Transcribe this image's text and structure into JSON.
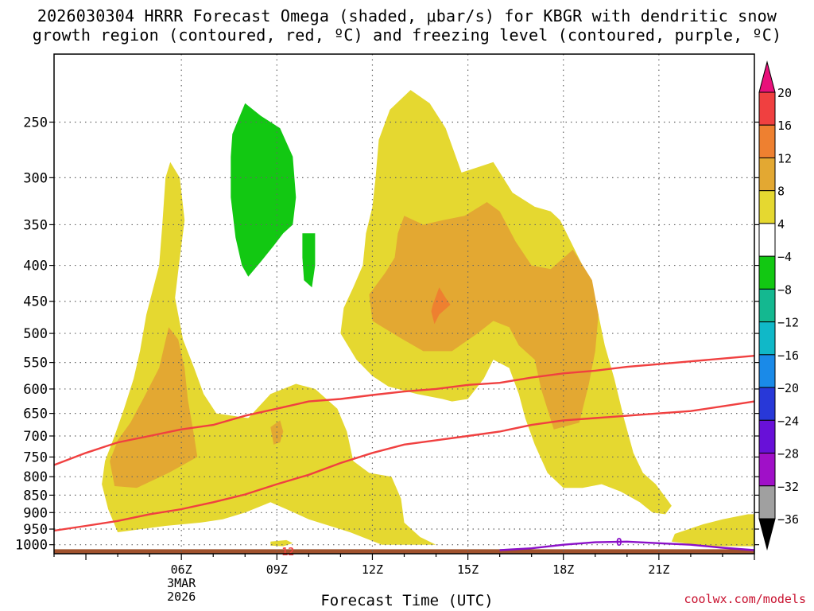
{
  "title_line1": "2026030304 HRRR Forecast Omega (shaded, μbar/s) for KBGR with dendritic snow",
  "title_line2": "growth region (contoured, red, ºC) and freezing level (contoured, purple, ºC)",
  "xlabel": "Forecast Time (UTC)",
  "credit": "coolwx.com/models",
  "chart_data": {
    "type": "heatmap",
    "title": "2026030304 HRRR Forecast Omega (shaded, μbar/s) for KBGR with dendritic snow growth region (contoured, red, ºC) and freezing level (contoured, purple, ºC)",
    "xlabel": "Forecast Time (UTC)",
    "ylabel": "",
    "x_range_hours_utc": [
      2.0,
      24.0
    ],
    "y_range_hpa": [
      1030,
      200
    ],
    "y_scale": "log",
    "grid": true,
    "x_ticks": [
      {
        "hour": 6,
        "label": "06Z",
        "sub1": "3MAR",
        "sub2": "2026"
      },
      {
        "hour": 9,
        "label": "09Z"
      },
      {
        "hour": 12,
        "label": "12Z"
      },
      {
        "hour": 15,
        "label": "15Z"
      },
      {
        "hour": 18,
        "label": "18Z"
      },
      {
        "hour": 21,
        "label": "21Z"
      }
    ],
    "y_ticks": [
      250,
      300,
      350,
      400,
      450,
      500,
      550,
      600,
      650,
      700,
      750,
      800,
      850,
      900,
      950,
      1000
    ],
    "colorbar": {
      "labels": [
        "20",
        "16",
        "12",
        "8",
        "4",
        "−4",
        "−8",
        "−12",
        "−16",
        "−20",
        "−24",
        "−28",
        "−32",
        "−36"
      ],
      "colors": [
        "#e8107a",
        "#f04040",
        "#ee8030",
        "#e3a832",
        "#e5d830",
        "#ffffff",
        "#12c812",
        "#14b890",
        "#10b8c8",
        "#1a8ae8",
        "#2838d8",
        "#6810d8",
        "#a010c8",
        "#a0a0a0",
        "#000000"
      ]
    },
    "shaded_regions": [
      {
        "name": "omega 4-8 west",
        "color": "#e5d830",
        "value_range": [
          4,
          8
        ],
        "points": [
          [
            4.0,
            960
          ],
          [
            3.7,
            890
          ],
          [
            3.5,
            820
          ],
          [
            3.6,
            760
          ],
          [
            3.9,
            700
          ],
          [
            4.2,
            640
          ],
          [
            4.5,
            580
          ],
          [
            4.7,
            530
          ],
          [
            4.9,
            470
          ],
          [
            5.3,
            400
          ],
          [
            5.4,
            350
          ],
          [
            5.5,
            300
          ],
          [
            5.65,
            285
          ],
          [
            5.95,
            300
          ],
          [
            6.1,
            345
          ],
          [
            5.95,
            390
          ],
          [
            5.8,
            445
          ],
          [
            6.05,
            510
          ],
          [
            6.4,
            560
          ],
          [
            6.7,
            610
          ],
          [
            7.1,
            650
          ],
          [
            8.1,
            660
          ],
          [
            8.8,
            610
          ],
          [
            9.6,
            590
          ],
          [
            10.2,
            600
          ],
          [
            10.9,
            640
          ],
          [
            11.2,
            690
          ],
          [
            11.4,
            760
          ],
          [
            11.9,
            790
          ],
          [
            12.6,
            800
          ],
          [
            12.9,
            860
          ],
          [
            13.0,
            930
          ],
          [
            13.5,
            975
          ],
          [
            14.0,
            1000
          ],
          [
            12.3,
            1000
          ],
          [
            11.3,
            960
          ],
          [
            10.0,
            920
          ],
          [
            9.3,
            890
          ],
          [
            8.8,
            870
          ],
          [
            8.0,
            900
          ],
          [
            7.3,
            920
          ],
          [
            6.6,
            930
          ],
          [
            5.5,
            940
          ]
        ]
      },
      {
        "name": "omega 4-8 east",
        "color": "#e5d830",
        "value_range": [
          4,
          8
        ],
        "points": [
          [
            11.0,
            500
          ],
          [
            11.1,
            460
          ],
          [
            11.4,
            430
          ],
          [
            11.7,
            400
          ],
          [
            11.8,
            360
          ],
          [
            12.0,
            330
          ],
          [
            12.1,
            300
          ],
          [
            12.2,
            265
          ],
          [
            12.55,
            240
          ],
          [
            13.2,
            225
          ],
          [
            13.8,
            235
          ],
          [
            14.3,
            255
          ],
          [
            14.8,
            295
          ],
          [
            15.3,
            290
          ],
          [
            15.8,
            285
          ],
          [
            16.4,
            315
          ],
          [
            17.1,
            330
          ],
          [
            17.6,
            335
          ],
          [
            17.9,
            345
          ],
          [
            18.6,
            400
          ],
          [
            19.1,
            470
          ],
          [
            19.3,
            520
          ],
          [
            19.6,
            580
          ],
          [
            19.9,
            660
          ],
          [
            20.2,
            740
          ],
          [
            20.5,
            790
          ],
          [
            20.9,
            820
          ],
          [
            21.2,
            855
          ],
          [
            21.4,
            880
          ],
          [
            21.2,
            905
          ],
          [
            20.8,
            900
          ],
          [
            20.4,
            870
          ],
          [
            19.8,
            840
          ],
          [
            19.2,
            820
          ],
          [
            18.6,
            830
          ],
          [
            18.0,
            830
          ],
          [
            17.5,
            790
          ],
          [
            17.1,
            720
          ],
          [
            16.8,
            660
          ],
          [
            16.6,
            610
          ],
          [
            16.3,
            560
          ],
          [
            15.8,
            545
          ],
          [
            15.5,
            580
          ],
          [
            15.0,
            620
          ],
          [
            14.5,
            625
          ],
          [
            14.2,
            620
          ],
          [
            13.4,
            610
          ],
          [
            12.5,
            595
          ],
          [
            12.0,
            575
          ],
          [
            11.5,
            545
          ]
        ]
      },
      {
        "name": "omega 4-8 southeast",
        "color": "#e5d830",
        "value_range": [
          4,
          8
        ],
        "points": [
          [
            21.5,
            965
          ],
          [
            22.4,
            935
          ],
          [
            23.0,
            920
          ],
          [
            23.8,
            905
          ],
          [
            24.0,
            905
          ],
          [
            24.0,
            1005
          ],
          [
            22.5,
            1005
          ],
          [
            21.4,
            990
          ]
        ]
      },
      {
        "name": "omega 4-8 blob",
        "color": "#e5d830",
        "value_range": [
          4,
          8
        ],
        "points": [
          [
            8.8,
            990
          ],
          [
            9.3,
            985
          ],
          [
            9.5,
            995
          ],
          [
            9.2,
            1005
          ],
          [
            8.8,
            1003
          ]
        ]
      },
      {
        "name": "omega 8-12 west",
        "color": "#e3a832",
        "value_range": [
          8,
          12
        ],
        "points": [
          [
            3.9,
            825
          ],
          [
            3.75,
            760
          ],
          [
            4.0,
            710
          ],
          [
            4.4,
            670
          ],
          [
            4.8,
            620
          ],
          [
            5.3,
            560
          ],
          [
            5.6,
            490
          ],
          [
            5.9,
            510
          ],
          [
            6.1,
            560
          ],
          [
            6.2,
            620
          ],
          [
            6.4,
            700
          ],
          [
            6.5,
            750
          ],
          [
            5.6,
            790
          ],
          [
            4.6,
            830
          ]
        ]
      },
      {
        "name": "omega 8-12 small",
        "color": "#e3a832",
        "value_range": [
          8,
          12
        ],
        "points": [
          [
            8.8,
            680
          ],
          [
            9.1,
            665
          ],
          [
            9.2,
            690
          ],
          [
            9.1,
            715
          ],
          [
            8.9,
            720
          ]
        ]
      },
      {
        "name": "omega 8-12 east",
        "color": "#e3a832",
        "value_range": [
          8,
          12
        ],
        "points": [
          [
            12.0,
            480
          ],
          [
            11.9,
            440
          ],
          [
            12.4,
            410
          ],
          [
            12.7,
            390
          ],
          [
            12.8,
            360
          ],
          [
            13.0,
            340
          ],
          [
            13.6,
            350
          ],
          [
            14.2,
            345
          ],
          [
            14.9,
            340
          ],
          [
            15.6,
            325
          ],
          [
            16.0,
            335
          ],
          [
            16.5,
            370
          ],
          [
            17.0,
            400
          ],
          [
            17.6,
            405
          ],
          [
            18.3,
            380
          ],
          [
            18.9,
            420
          ],
          [
            19.1,
            470
          ],
          [
            19.0,
            530
          ],
          [
            18.8,
            590
          ],
          [
            18.5,
            670
          ],
          [
            17.7,
            685
          ],
          [
            17.3,
            600
          ],
          [
            17.1,
            545
          ],
          [
            16.6,
            520
          ],
          [
            16.3,
            490
          ],
          [
            15.8,
            480
          ],
          [
            15.3,
            500
          ],
          [
            14.5,
            530
          ],
          [
            13.6,
            530
          ],
          [
            12.8,
            505
          ]
        ]
      },
      {
        "name": "omega 12-16",
        "color": "#ee8030",
        "value_range": [
          12,
          16
        ],
        "points": [
          [
            13.9,
            455
          ],
          [
            14.1,
            430
          ],
          [
            14.3,
            445
          ],
          [
            14.45,
            455
          ],
          [
            14.1,
            470
          ],
          [
            13.95,
            485
          ],
          [
            13.85,
            465
          ]
        ]
      },
      {
        "name": "omega -4 to -8 upper",
        "color": "#12c812",
        "value_range": [
          -8,
          -4
        ],
        "points": [
          [
            7.55,
            280
          ],
          [
            7.6,
            260
          ],
          [
            8.0,
            235
          ],
          [
            8.5,
            245
          ],
          [
            9.1,
            255
          ],
          [
            9.5,
            280
          ],
          [
            9.6,
            320
          ],
          [
            9.5,
            350
          ],
          [
            9.2,
            360
          ],
          [
            8.9,
            375
          ],
          [
            8.5,
            395
          ],
          [
            8.1,
            415
          ],
          [
            7.9,
            400
          ],
          [
            7.7,
            365
          ],
          [
            7.55,
            320
          ]
        ]
      },
      {
        "name": "omega -4 to -8 lower",
        "color": "#12c812",
        "value_range": [
          -8,
          -4
        ],
        "points": [
          [
            9.8,
            360
          ],
          [
            10.2,
            360
          ],
          [
            10.2,
            400
          ],
          [
            10.1,
            430
          ],
          [
            9.85,
            420
          ],
          [
            9.8,
            390
          ]
        ]
      }
    ],
    "series": [
      {
        "name": "",
        "color": "#f04040",
        "values": [
          [
            2,
            770
          ],
          [
            3,
            740
          ],
          [
            4,
            715
          ],
          [
            5,
            700
          ],
          [
            6,
            685
          ],
          [
            7,
            675
          ],
          [
            8,
            655
          ],
          [
            9,
            640
          ],
          [
            10,
            625
          ],
          [
            11,
            620
          ],
          [
            12,
            612
          ],
          [
            13,
            605
          ],
          [
            14,
            600
          ],
          [
            15,
            592
          ],
          [
            16,
            588
          ],
          [
            17,
            578
          ],
          [
            18,
            570
          ],
          [
            19,
            565
          ],
          [
            20,
            558
          ],
          [
            21,
            553
          ],
          [
            22,
            548
          ],
          [
            23,
            543
          ],
          [
            24,
            538
          ]
        ]
      },
      {
        "name": "",
        "color": "#f04040",
        "values": [
          [
            2,
            955
          ],
          [
            3,
            940
          ],
          [
            4,
            925
          ],
          [
            5,
            905
          ],
          [
            6,
            890
          ],
          [
            7,
            870
          ],
          [
            8,
            848
          ],
          [
            9,
            820
          ],
          [
            10,
            795
          ],
          [
            11,
            765
          ],
          [
            12,
            740
          ],
          [
            13,
            720
          ],
          [
            14,
            710
          ],
          [
            15,
            700
          ],
          [
            16,
            690
          ],
          [
            17,
            675
          ],
          [
            18,
            665
          ],
          [
            19,
            660
          ],
          [
            20,
            655
          ],
          [
            21,
            650
          ],
          [
            22,
            645
          ],
          [
            23,
            635
          ],
          [
            24,
            625
          ]
        ]
      },
      {
        "name": "",
        "color": "#8a10c8",
        "values": [
          [
            16.0,
            1018
          ],
          [
            17,
            1012
          ],
          [
            18,
            1000
          ],
          [
            19,
            992
          ],
          [
            20,
            990
          ],
          [
            21,
            995
          ],
          [
            22,
            1000
          ],
          [
            23,
            1010
          ],
          [
            24,
            1018
          ]
        ]
      }
    ],
    "contour_labels": [
      {
        "text": "0",
        "x": 19.75,
        "y": 990,
        "color": "#8a10c8"
      },
      {
        "text": "12",
        "x": 9.35,
        "y": 1022,
        "color": "#f04040"
      }
    ],
    "ground": {
      "color": "#a0522d",
      "pressure_top": 1015
    }
  }
}
